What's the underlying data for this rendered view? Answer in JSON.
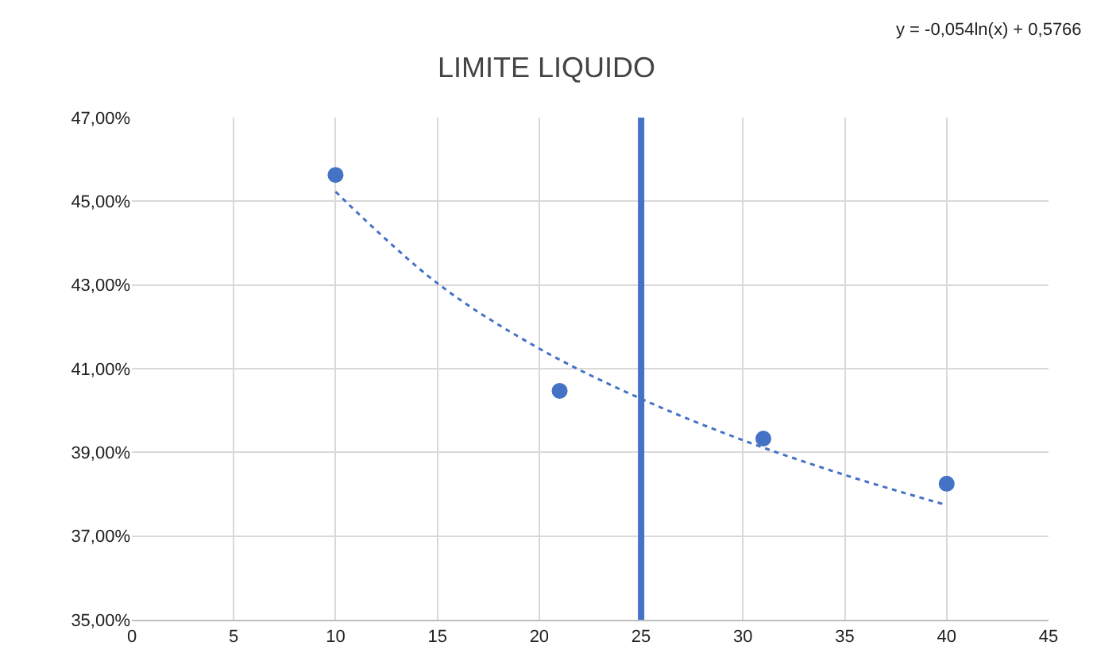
{
  "chart_data": {
    "type": "scatter",
    "title": "LIMITE LIQUIDO",
    "x": [
      10,
      21,
      31,
      40
    ],
    "series": [
      {
        "color": "#4472c4",
        "marker": "circle",
        "values": [
          45.63,
          40.47,
          39.33,
          38.25
        ]
      },
      {
        "type": "line",
        "color": "#4472c4",
        "line_style": "dotted",
        "marker": "none",
        "x": [
          10,
          15,
          20,
          25,
          30,
          35,
          40
        ],
        "values": [
          45.23,
          43.04,
          41.48,
          40.28,
          39.29,
          38.46,
          37.74
        ]
      }
    ],
    "xlim": [
      0,
      45
    ],
    "xticks": [
      0,
      5,
      10,
      15,
      20,
      25,
      30,
      35,
      40,
      45
    ],
    "ylim": [
      35,
      47
    ],
    "yticks": [
      {
        "value": 35,
        "label": "35,00%"
      },
      {
        "value": 37,
        "label": "37,00%"
      },
      {
        "value": 39,
        "label": "39,00%"
      },
      {
        "value": 41,
        "label": "41,00%"
      },
      {
        "value": 43,
        "label": "43,00%"
      },
      {
        "value": 45,
        "label": "45,00%"
      },
      {
        "value": 47,
        "label": "47,00%"
      }
    ],
    "ref_lines": [
      {
        "axis": "x",
        "value": 25,
        "color": "#4472c4"
      }
    ],
    "annotations": [
      "y = -0,054ln(x) + 0,5766"
    ],
    "grid": true
  }
}
